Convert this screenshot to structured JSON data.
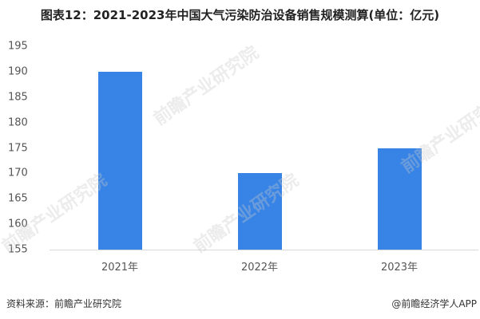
{
  "title": "图表12：2021-2023年中国大气污染防治设备销售规模测算(单位：亿元)",
  "chart_data": {
    "type": "bar",
    "title": "图表12：2021-2023年中国大气污染防治设备销售规模测算(单位：亿元)",
    "xlabel": "",
    "ylabel": "",
    "unit": "亿元",
    "categories": [
      "2021年",
      "2022年",
      "2023年"
    ],
    "values": [
      190,
      170,
      175
    ],
    "ylim": [
      155,
      195
    ],
    "yticks": [
      195,
      190,
      185,
      180,
      175,
      170,
      165,
      160,
      155
    ],
    "grid": false,
    "legend": null,
    "bar_color": "#3884e6"
  },
  "footer": {
    "source": "资料来源：前瞻产业研究院",
    "credit": "@前瞻经济学人APP"
  },
  "watermark": "前瞻产业研究院"
}
